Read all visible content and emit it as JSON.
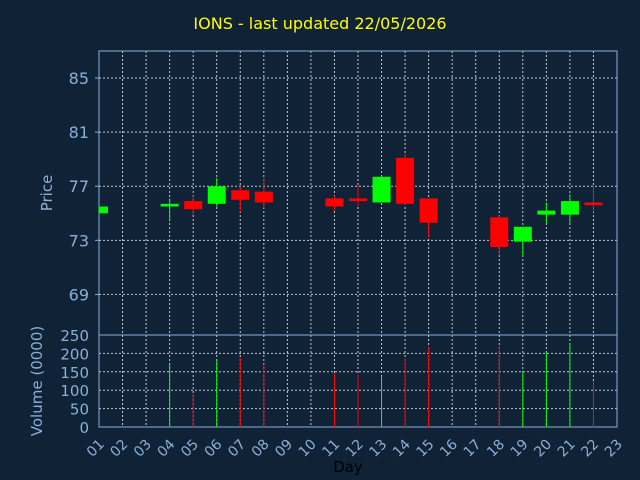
{
  "chart_data": {
    "type": "candlestick",
    "title": "IONS - last updated 22/05/2026",
    "ylabel": "Price",
    "volume_ylabel": "Volume (0000)",
    "xlabel": "Day",
    "ylim": [
      66,
      87
    ],
    "volume_ylim": [
      0,
      250
    ],
    "y_ticks": [
      69,
      73,
      77,
      81,
      85
    ],
    "volume_ticks": [
      0,
      50,
      100,
      150,
      200,
      250
    ],
    "x_ticks": [
      "01",
      "02",
      "03",
      "04",
      "05",
      "06",
      "07",
      "08",
      "09",
      "10",
      "11",
      "12",
      "13",
      "14",
      "15",
      "16",
      "17",
      "18",
      "19",
      "20",
      "21",
      "22",
      "23"
    ],
    "grid": true,
    "colors": {
      "background": "#0f2236",
      "plot_bg": "#0f2236",
      "axis": "#8ab0d8",
      "grid": "#c0c8d0",
      "up": "#00ff00",
      "down": "#ff0000",
      "title": "#ffff00",
      "label": "#8ab0d8",
      "xlabel": "#000000"
    },
    "candles": [
      {
        "day": "01",
        "open": 75.0,
        "high": 75.5,
        "low": 75.0,
        "close": 75.5
      },
      {
        "day": "04",
        "open": 75.5,
        "high": 76.1,
        "low": 74.4,
        "close": 75.7
      },
      {
        "day": "05",
        "open": 75.9,
        "high": 76.3,
        "low": 74.9,
        "close": 75.3
      },
      {
        "day": "06",
        "open": 75.7,
        "high": 77.6,
        "low": 75.5,
        "close": 77.0
      },
      {
        "day": "07",
        "open": 76.7,
        "high": 77.0,
        "low": 75.1,
        "close": 76.0
      },
      {
        "day": "08",
        "open": 76.6,
        "high": 77.6,
        "low": 75.4,
        "close": 75.8
      },
      {
        "day": "11",
        "open": 76.1,
        "high": 76.3,
        "low": 75.2,
        "close": 75.5
      },
      {
        "day": "12",
        "open": 76.1,
        "high": 77.1,
        "low": 75.5,
        "close": 75.9
      },
      {
        "day": "13",
        "open": 75.8,
        "high": 77.8,
        "low": 75.8,
        "close": 77.7
      },
      {
        "day": "14",
        "open": 79.1,
        "high": 79.4,
        "low": 75.6,
        "close": 75.7
      },
      {
        "day": "15",
        "open": 76.1,
        "high": 76.1,
        "low": 73.2,
        "close": 74.3
      },
      {
        "day": "18",
        "open": 74.7,
        "high": 74.9,
        "low": 71.9,
        "close": 72.5
      },
      {
        "day": "19",
        "open": 72.9,
        "high": 74.0,
        "low": 71.8,
        "close": 74.0
      },
      {
        "day": "20",
        "open": 74.9,
        "high": 75.8,
        "low": 74.2,
        "close": 75.2
      },
      {
        "day": "21",
        "open": 74.9,
        "high": 76.4,
        "low": 74.3,
        "close": 75.9
      },
      {
        "day": "22",
        "open": 75.8,
        "high": 77.0,
        "low": 75.1,
        "close": 75.6
      }
    ],
    "volume": [
      {
        "day": "04",
        "value": 170,
        "dir": "up"
      },
      {
        "day": "05",
        "value": 90,
        "dir": "down"
      },
      {
        "day": "06",
        "value": 182,
        "dir": "up"
      },
      {
        "day": "07",
        "value": 188,
        "dir": "down"
      },
      {
        "day": "08",
        "value": 170,
        "dir": "down"
      },
      {
        "day": "11",
        "value": 146,
        "dir": "down"
      },
      {
        "day": "12",
        "value": 143,
        "dir": "down"
      },
      {
        "day": "13",
        "value": 137,
        "dir": "up"
      },
      {
        "day": "14",
        "value": 186,
        "dir": "down"
      },
      {
        "day": "15",
        "value": 218,
        "dir": "down"
      },
      {
        "day": "18",
        "value": 220,
        "dir": "down"
      },
      {
        "day": "19",
        "value": 150,
        "dir": "up"
      },
      {
        "day": "20",
        "value": 202,
        "dir": "up"
      },
      {
        "day": "21",
        "value": 228,
        "dir": "up"
      },
      {
        "day": "22",
        "value": 125,
        "dir": "down"
      }
    ]
  }
}
